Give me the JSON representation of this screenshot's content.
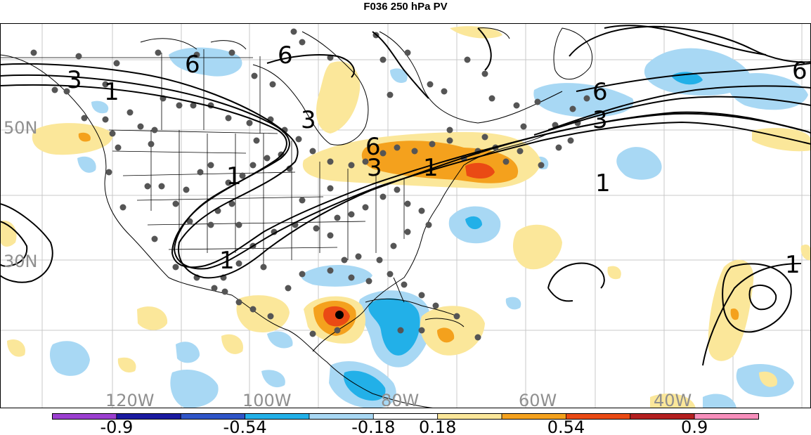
{
  "title": "F036 250 hPa PV",
  "lat_labels": [
    "50N",
    "30N"
  ],
  "lon_labels": [
    "120W",
    "100W",
    "80W",
    "60W",
    "40W"
  ],
  "contour_labels": [
    "6",
    "3",
    "1",
    "6",
    "3",
    "1",
    "6",
    "6",
    "3",
    "1",
    "3",
    "1",
    "1",
    "1"
  ],
  "colorbar": {
    "colors": [
      "#9b3fd0",
      "#1a1aa0",
      "#2f55c8",
      "#22b0e8",
      "#a8d8f4",
      "#ffffff",
      "#fbe79a",
      "#f4a11d",
      "#ea4a14",
      "#b41f1f",
      "#f78fbc"
    ],
    "tick_labels": [
      "-0.9",
      "-0.54",
      "-0.18",
      "0.18",
      "0.54",
      "0.9"
    ]
  },
  "colors": {
    "light_blue": "#a8d8f4",
    "mid_blue": "#22b0e8",
    "light_yellow": "#fbe79a",
    "orange": "#f4a11d",
    "red_orange": "#ea4a14"
  }
}
